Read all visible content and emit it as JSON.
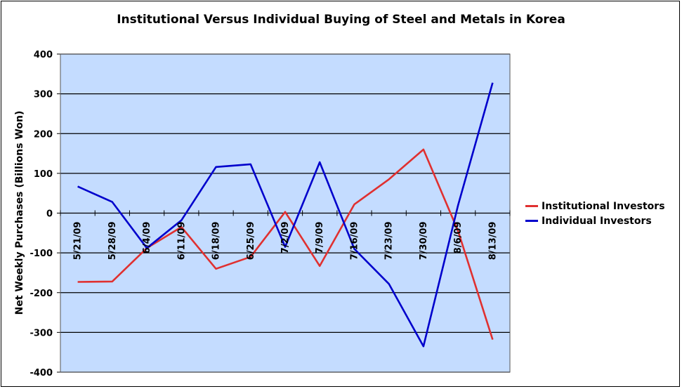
{
  "chart_data": {
    "type": "line",
    "title": "Institutional Versus Individual Buying of Steel and Metals in Korea",
    "ylabel": "Net Weekly Purchases (Billions Won)",
    "xlabel": "",
    "ylim": [
      -400,
      400
    ],
    "yticks": [
      "400",
      "300",
      "200",
      "100",
      "0",
      "-100",
      "-200",
      "-300",
      "-400"
    ],
    "ytick_values": [
      400,
      300,
      200,
      100,
      0,
      -100,
      -200,
      -300,
      -400
    ],
    "categories": [
      "5/21/09",
      "5/28/09",
      "6/4/09",
      "6/11/09",
      "6/18/09",
      "6/25/09",
      "7/2/09",
      "7/9/09",
      "7/16/09",
      "7/23/09",
      "7/30/09",
      "8/6/09",
      "8/13/09"
    ],
    "series": [
      {
        "name": "Institutional Investors",
        "color": "#e03030",
        "values": [
          -173,
          -172,
          -88,
          -35,
          -140,
          -110,
          3,
          -133,
          22,
          85,
          160,
          -45,
          -318
        ]
      },
      {
        "name": "Individual Investors",
        "color": "#0000cc",
        "values": [
          67,
          28,
          -88,
          -18,
          116,
          123,
          -85,
          128,
          -90,
          -178,
          -335,
          20,
          328
        ]
      }
    ],
    "grid": true,
    "plot_background": "#c4dcff",
    "legend_position": "right"
  }
}
